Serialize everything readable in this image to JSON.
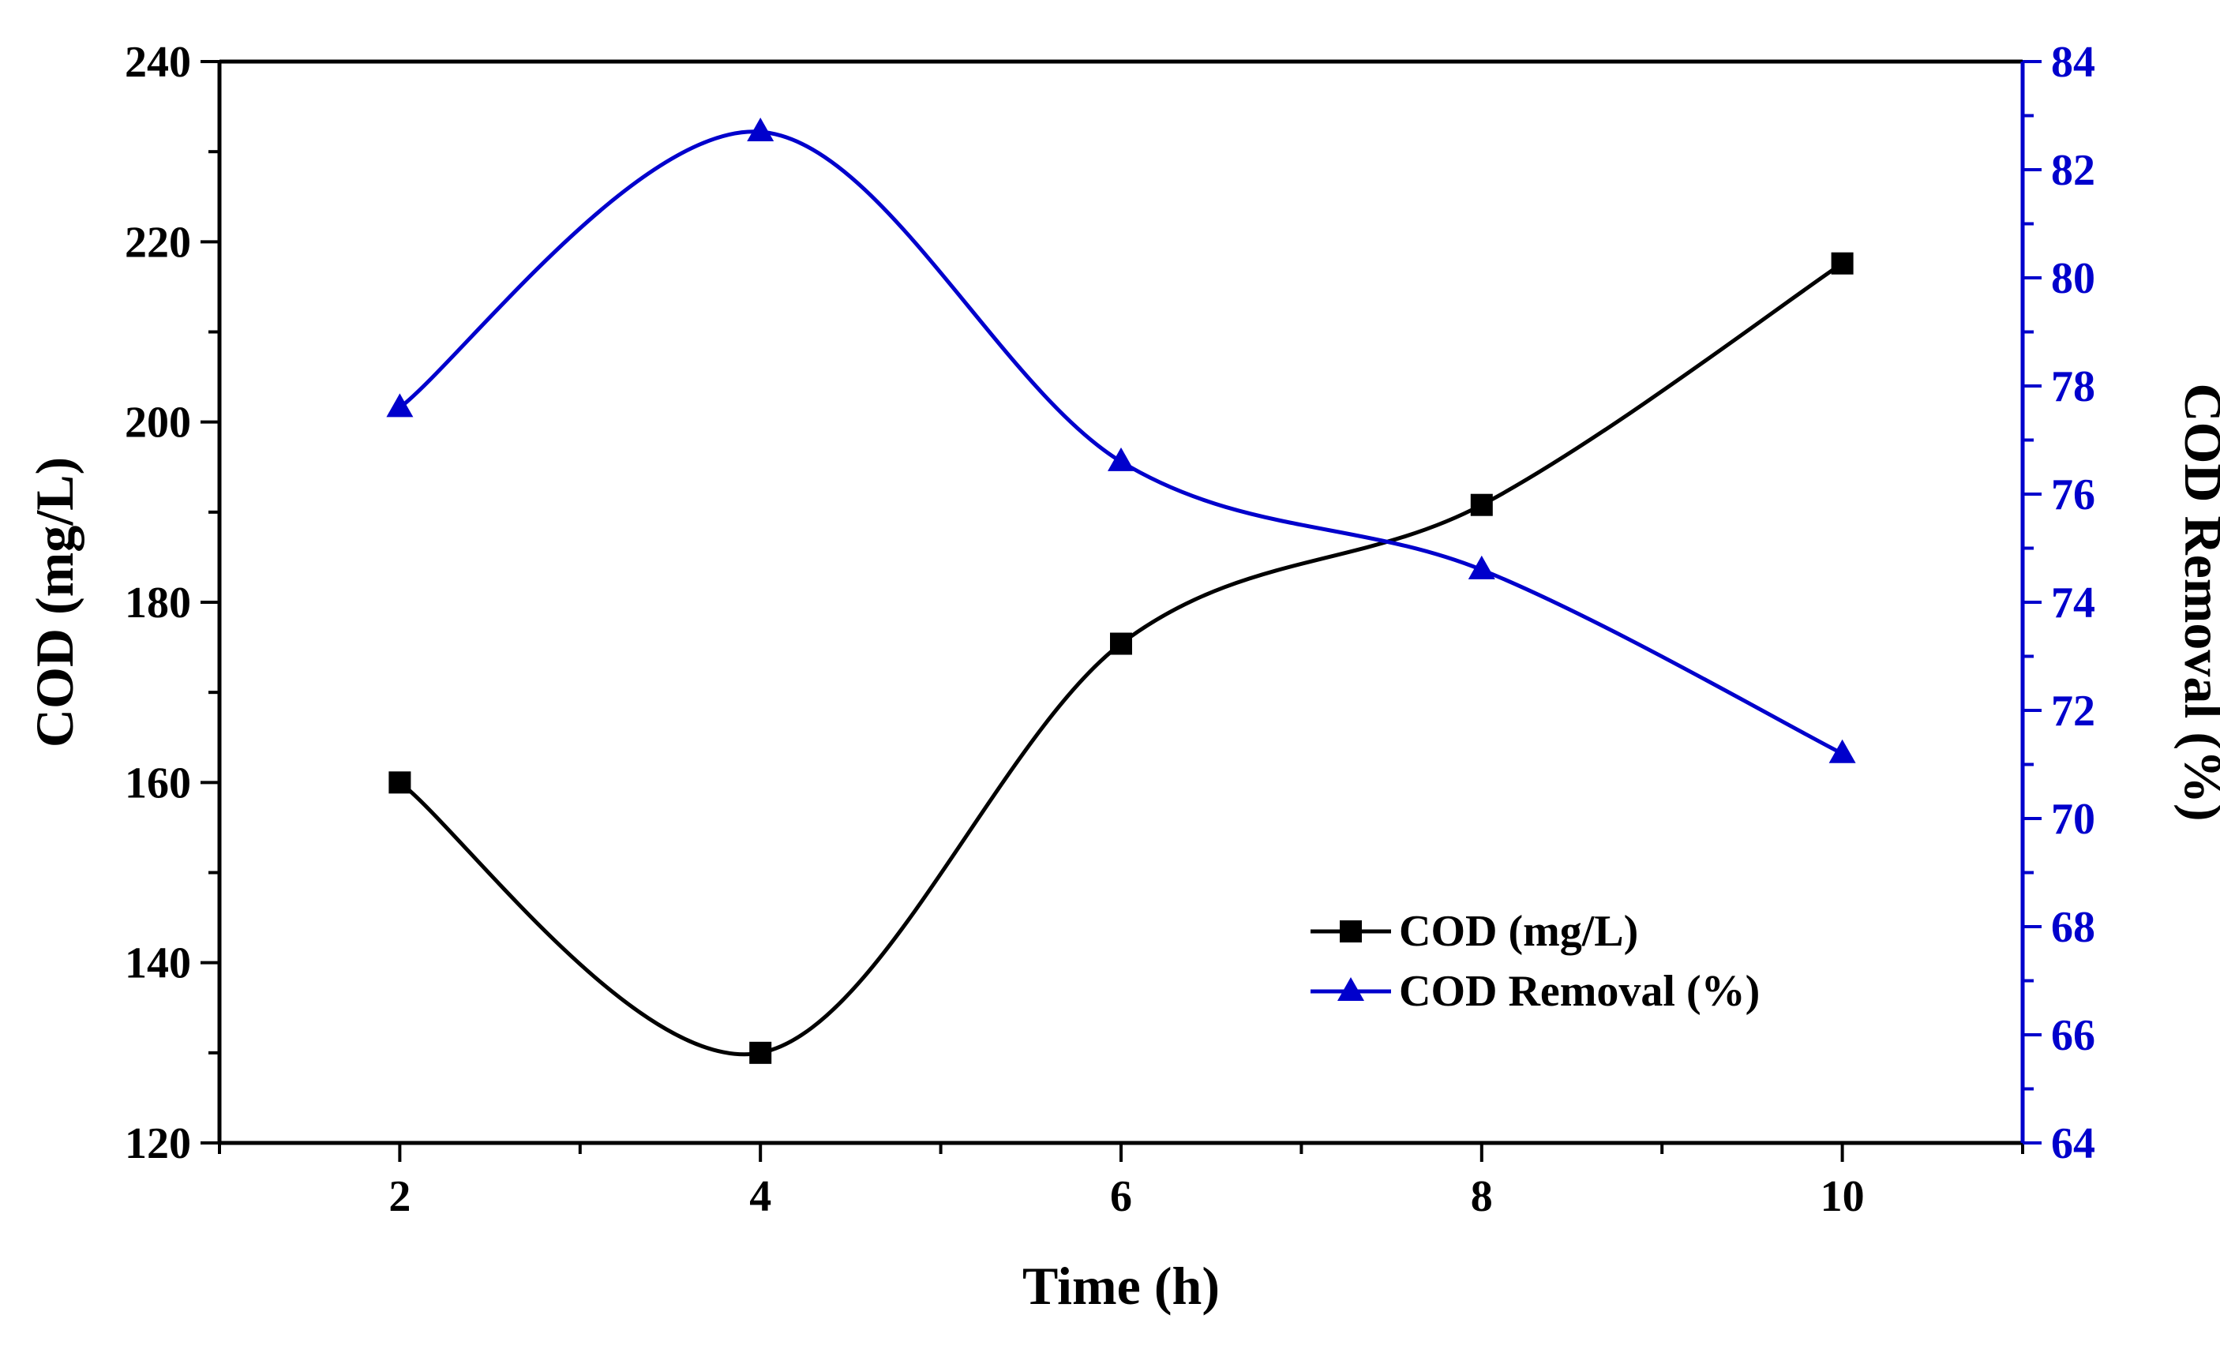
{
  "chart_data": {
    "type": "line",
    "title": "",
    "xlabel": "Time (h)",
    "ylabel": "COD (mg/L)",
    "y2label": "COD Removal (%)",
    "x": [
      2,
      4,
      6,
      8,
      10
    ],
    "xlim": [
      1,
      11
    ],
    "xticks": [
      "2",
      "4",
      "6",
      "8",
      "10"
    ],
    "ylim": [
      120,
      240
    ],
    "yticks": [
      "120",
      "140",
      "160",
      "180",
      "200",
      "220",
      "240"
    ],
    "y2lim": [
      64,
      84
    ],
    "y2ticks": [
      "64",
      "66",
      "68",
      "70",
      "72",
      "74",
      "76",
      "78",
      "80",
      "82",
      "84"
    ],
    "grid": false,
    "legend_position": "lower-right",
    "series": [
      {
        "name": "COD (mg/L)",
        "axis": "left",
        "marker": "square",
        "color": "#000000",
        "values": [
          160,
          130,
          175.4,
          190.8,
          217.6
        ]
      },
      {
        "name": "COD Removal (%)",
        "axis": "right",
        "marker": "triangle",
        "color": "#0000cc",
        "values": [
          77.6,
          82.7,
          76.6,
          74.6,
          71.2
        ]
      }
    ]
  }
}
